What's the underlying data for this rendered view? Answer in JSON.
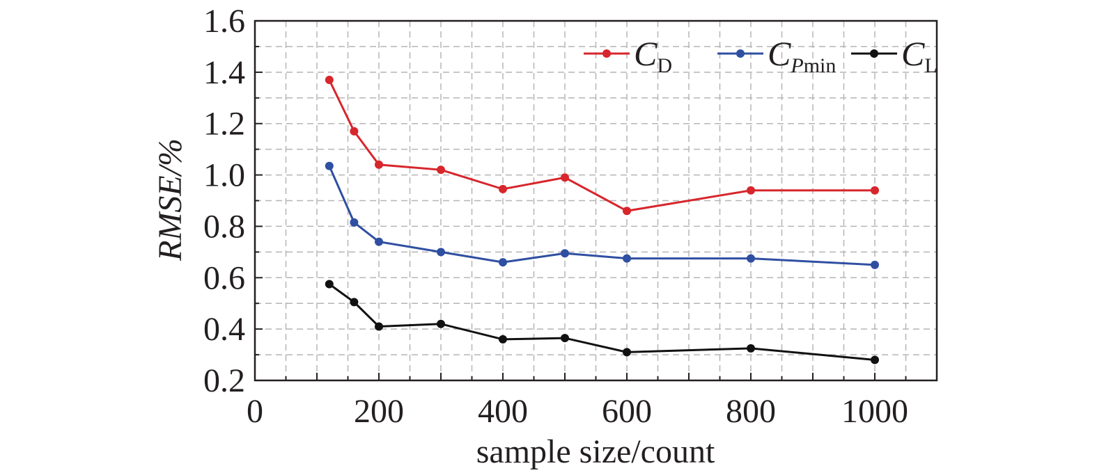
{
  "chart_data": {
    "type": "line",
    "xlabel": "sample size/count",
    "ylabel": "RMSE/%",
    "xlim": [
      0,
      1100
    ],
    "ylim": [
      0.2,
      1.6
    ],
    "xticks": [
      0,
      200,
      400,
      600,
      800,
      1000
    ],
    "yticks": [
      0.2,
      0.4,
      0.6,
      0.8,
      1.0,
      1.2,
      1.4,
      1.6
    ],
    "xtick_labels": [
      "0",
      "200",
      "400",
      "600",
      "800",
      "1000"
    ],
    "ytick_labels": [
      "0.2",
      "0.4",
      "0.6",
      "0.8",
      "1.0",
      "1.2",
      "1.4",
      "1.6"
    ],
    "grid": true,
    "legend_position": "top-right",
    "x": [
      120,
      160,
      200,
      300,
      400,
      500,
      600,
      800,
      1000
    ],
    "series": [
      {
        "name": "CD",
        "name_main": "C",
        "name_sub": "D",
        "sub_italic": false,
        "color": "#d7262c",
        "values": [
          1.37,
          1.17,
          1.04,
          1.02,
          0.945,
          0.99,
          0.86,
          0.94,
          0.94
        ]
      },
      {
        "name": "CPmin",
        "name_main": "C",
        "name_sub_italic": "P",
        "name_sub": "min",
        "color": "#2f4fa2",
        "values": [
          1.035,
          0.815,
          0.74,
          0.7,
          0.66,
          0.695,
          0.675,
          0.675,
          0.65
        ]
      },
      {
        "name": "CL",
        "name_main": "C",
        "name_sub": "L",
        "sub_italic": false,
        "color": "#111111",
        "values": [
          0.575,
          0.505,
          0.41,
          0.42,
          0.36,
          0.365,
          0.31,
          0.325,
          0.28
        ]
      }
    ]
  }
}
